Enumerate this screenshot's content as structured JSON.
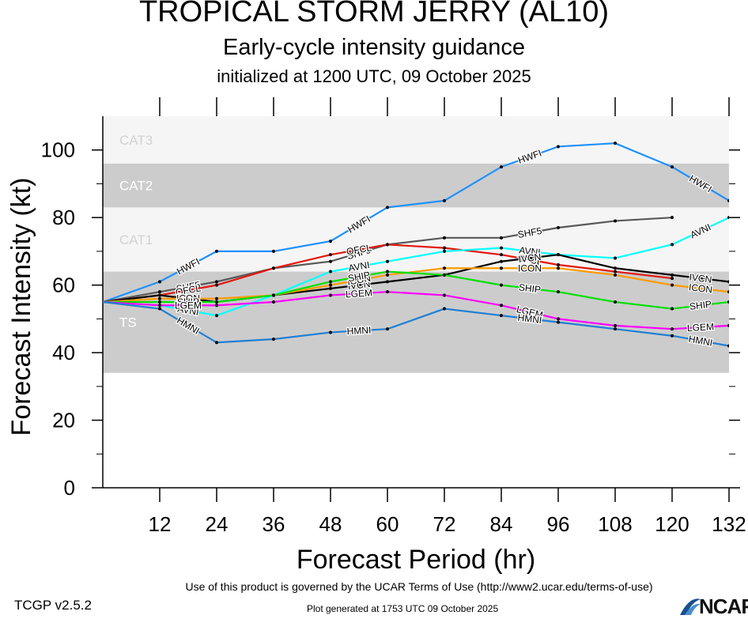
{
  "header": {
    "title": "TROPICAL STORM JERRY (AL10)",
    "subtitle": "Early-cycle intensity guidance",
    "init": "initialized at 1200 UTC, 09 October 2025"
  },
  "footer": {
    "version": "TCGP v2.5.2",
    "terms": "Use of this product is governed by the UCAR Terms of Use (http://www2.ucar.edu/terms-of-use)",
    "generated": "Plot generated at 1753 UTC   09 October 2025",
    "logo_text": "NCAR"
  },
  "chart_data": {
    "type": "line",
    "xlabel": "Forecast Period (hr)",
    "ylabel": "Forecast Intensity (kt)",
    "xlim": [
      0,
      132
    ],
    "ylim": [
      0,
      110
    ],
    "xticks": [
      12,
      24,
      36,
      48,
      60,
      72,
      84,
      96,
      108,
      120,
      132
    ],
    "yticks": [
      0,
      20,
      40,
      60,
      80,
      100
    ],
    "bands": [
      {
        "label": "TS",
        "ymin": 34,
        "ymax": 64,
        "color": "#cccccc"
      },
      {
        "label": "CAT1",
        "ymin": 64,
        "ymax": 83,
        "color": "#f5f5f5"
      },
      {
        "label": "CAT2",
        "ymin": 83,
        "ymax": 96,
        "color": "#cccccc"
      },
      {
        "label": "CAT3",
        "ymin": 96,
        "ymax": 110,
        "color": "#f5f5f5"
      }
    ],
    "series": [
      {
        "name": "HWFI",
        "color": "#1e90ff",
        "x": [
          0,
          12,
          24,
          36,
          48,
          60,
          72,
          84,
          96,
          108,
          120,
          132
        ],
        "y": [
          55,
          61,
          70,
          70,
          73,
          83,
          85,
          95,
          101,
          102,
          95,
          85
        ]
      },
      {
        "name": "SHF5",
        "color": "#595959",
        "x": [
          0,
          12,
          24,
          36,
          48,
          60,
          72,
          84,
          96,
          108,
          120
        ],
        "y": [
          55,
          58,
          61,
          65,
          67,
          72,
          74,
          74,
          77,
          79,
          80
        ]
      },
      {
        "name": "OFCL",
        "color": "#e3170d",
        "x": [
          0,
          12,
          24,
          36,
          48,
          60,
          72,
          84,
          96,
          108,
          120
        ],
        "y": [
          55,
          57,
          60,
          65,
          69,
          72,
          71,
          69,
          66,
          64,
          62
        ]
      },
      {
        "name": "AVNI",
        "color": "#00ffff",
        "x": [
          0,
          12,
          24,
          36,
          48,
          60,
          72,
          84,
          96,
          108,
          120,
          132
        ],
        "y": [
          55,
          54,
          51,
          57,
          64,
          67,
          70,
          71,
          69,
          68,
          72,
          80
        ]
      },
      {
        "name": "IVCN",
        "color": "#000000",
        "x": [
          0,
          12,
          24,
          36,
          48,
          60,
          72,
          84,
          96,
          108,
          120,
          132
        ],
        "y": [
          55,
          57,
          55,
          57,
          59,
          61,
          63,
          67,
          69,
          65,
          63,
          61
        ]
      },
      {
        "name": "ICON",
        "color": "#ff9a00",
        "x": [
          0,
          12,
          24,
          36,
          48,
          60,
          72,
          84,
          96,
          108,
          120,
          132
        ],
        "y": [
          55,
          56,
          56,
          57,
          60,
          63,
          65,
          65,
          65,
          63,
          60,
          58
        ]
      },
      {
        "name": "SHIP",
        "color": "#00e000",
        "x": [
          0,
          12,
          24,
          36,
          48,
          60,
          72,
          84,
          96,
          108,
          120,
          132
        ],
        "y": [
          55,
          55,
          55,
          57,
          61,
          64,
          63,
          60,
          58,
          55,
          53,
          55
        ]
      },
      {
        "name": "LGEM",
        "color": "#ff00ff",
        "x": [
          0,
          12,
          24,
          36,
          48,
          60,
          72,
          84,
          96,
          108,
          120,
          132
        ],
        "y": [
          55,
          54,
          54,
          55,
          57,
          58,
          57,
          54,
          50,
          48,
          47,
          48
        ]
      },
      {
        "name": "HMNI",
        "color": "#1f7fd4",
        "x": [
          0,
          12,
          24,
          36,
          48,
          60,
          72,
          84,
          96,
          108,
          120,
          132
        ],
        "y": [
          55,
          53,
          43,
          44,
          46,
          47,
          53,
          51,
          49,
          47,
          45,
          42
        ]
      }
    ]
  }
}
